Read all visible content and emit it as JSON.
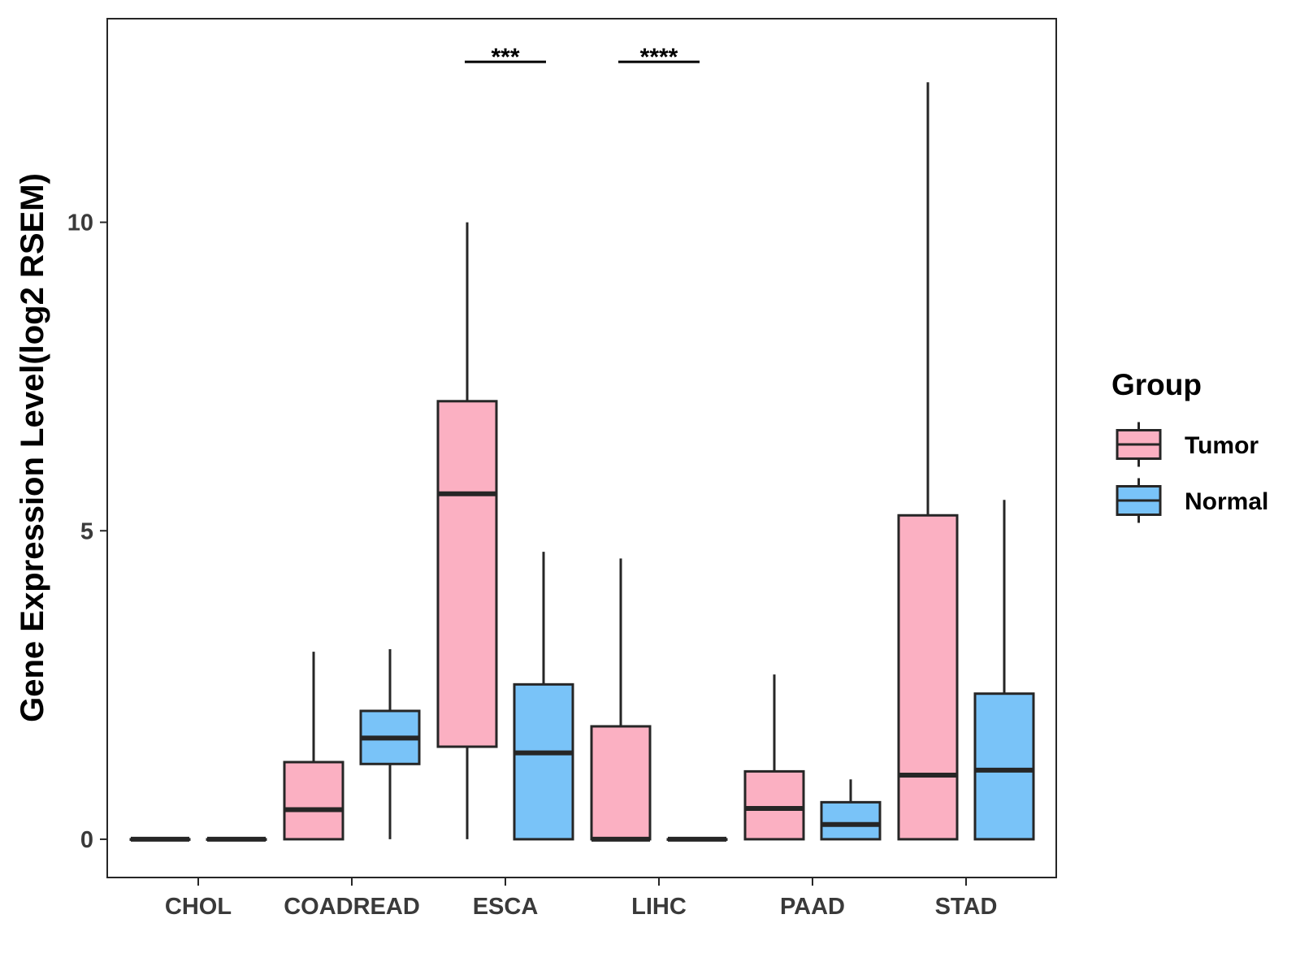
{
  "chart_data": {
    "type": "box",
    "title": "",
    "xlabel": "",
    "ylabel": "Gene Expression Level(log2 RSEM)",
    "ylim": [
      -0.62,
      13.3
    ],
    "yticks": [
      0,
      5,
      10
    ],
    "categories": [
      "CHOL",
      "COADREAD",
      "ESCA",
      "LIHC",
      "PAAD",
      "STAD"
    ],
    "series": [
      {
        "name": "Tumor",
        "color": "#FBB0C2",
        "boxes": [
          {
            "category": "CHOL",
            "min": 0,
            "q1": 0,
            "median": 0,
            "q3": 0,
            "max": 0
          },
          {
            "category": "COADREAD",
            "min": 0,
            "q1": 0,
            "median": 0.48,
            "q3": 1.25,
            "max": 3.04
          },
          {
            "category": "ESCA",
            "min": 0,
            "q1": 1.5,
            "median": 5.6,
            "q3": 7.1,
            "max": 10.0
          },
          {
            "category": "LIHC",
            "min": 0,
            "q1": 0,
            "median": 0,
            "q3": 1.83,
            "max": 4.55
          },
          {
            "category": "PAAD",
            "min": 0,
            "q1": 0,
            "median": 0.5,
            "q3": 1.1,
            "max": 2.67
          },
          {
            "category": "STAD",
            "min": 0,
            "q1": 0,
            "median": 1.04,
            "q3": 5.25,
            "max": 12.27
          }
        ]
      },
      {
        "name": "Normal",
        "color": "#79C3F8",
        "boxes": [
          {
            "category": "CHOL",
            "min": 0,
            "q1": 0,
            "median": 0,
            "q3": 0,
            "max": 0
          },
          {
            "category": "COADREAD",
            "min": 0,
            "q1": 1.22,
            "median": 1.64,
            "q3": 2.08,
            "max": 3.08
          },
          {
            "category": "ESCA",
            "min": 0,
            "q1": 0,
            "median": 1.4,
            "q3": 2.51,
            "max": 4.66
          },
          {
            "category": "LIHC",
            "min": 0,
            "q1": 0,
            "median": 0,
            "q3": 0,
            "max": 0
          },
          {
            "category": "PAAD",
            "min": 0,
            "q1": 0,
            "median": 0.24,
            "q3": 0.6,
            "max": 0.97
          },
          {
            "category": "STAD",
            "min": 0,
            "q1": 0,
            "median": 1.12,
            "q3": 2.36,
            "max": 5.5
          }
        ]
      }
    ],
    "annotations": [
      {
        "category": "ESCA",
        "label": "***",
        "y": 12.6
      },
      {
        "category": "LIHC",
        "label": "****",
        "y": 12.6
      }
    ],
    "legend": {
      "title": "Group",
      "position": "right"
    },
    "grid": false
  },
  "colors": {
    "tumor": "#FBB0C2",
    "normal": "#79C3F8",
    "outline": "#262626",
    "axis_text": "#3a3a3a"
  }
}
